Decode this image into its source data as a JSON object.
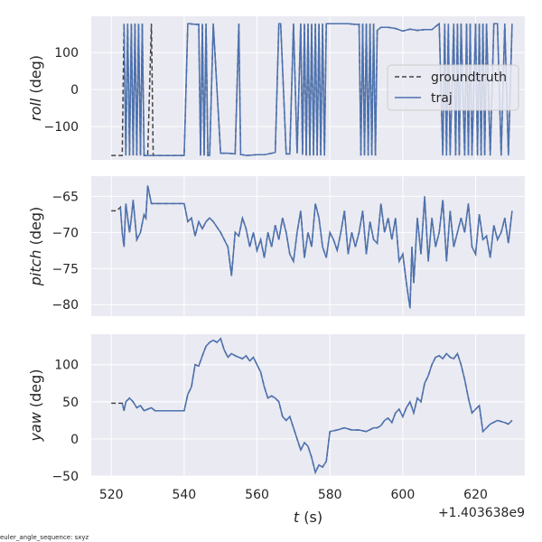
{
  "footer_note": "euler_angle_sequence: sxyz",
  "xaxis": {
    "label_var": "t",
    "label_unit": " (s)",
    "ticks": [
      520,
      540,
      560,
      580,
      600,
      620
    ],
    "offset_text": "+1.403638e9",
    "range": [
      514.5,
      633.5
    ]
  },
  "colors": {
    "background": "#eaeaf2",
    "grid": "#ffffff",
    "groundtruth": "#444444",
    "traj": "#4c72b0",
    "text": "#262626"
  },
  "legend": {
    "placement": "right (inside roll panel)",
    "entries": [
      "groundtruth",
      "traj"
    ]
  },
  "chart_data": [
    {
      "type": "line",
      "ylabel_var": "roll",
      "ylabel_unit": " (deg)",
      "ylim": [
        -190,
        198
      ],
      "yticks": [
        -100,
        0,
        100
      ],
      "grid": true,
      "series": [
        {
          "name": "groundtruth",
          "style": "dashed"
        },
        {
          "name": "traj",
          "style": "solid"
        }
      ],
      "x": [
        520,
        522,
        523,
        523.5,
        524,
        524.5,
        525,
        525.5,
        526,
        526.5,
        527,
        527.5,
        528,
        528.5,
        529,
        530,
        531,
        531.5,
        533,
        536,
        540,
        541,
        541.5,
        543,
        544,
        544.5,
        545,
        545.5,
        546,
        546.5,
        547,
        548,
        550,
        552,
        554,
        555,
        555.5,
        556,
        557,
        560,
        562,
        565,
        566,
        566.5,
        568,
        569,
        570,
        571,
        572,
        572.5,
        573,
        573.5,
        574,
        574.5,
        575,
        575.5,
        576,
        576.5,
        577,
        577.5,
        578,
        578.5,
        579,
        580,
        582,
        585,
        587,
        588,
        588.5,
        589,
        589.5,
        590,
        590.5,
        591,
        591.5,
        592,
        592.5,
        593,
        594,
        596,
        598,
        600,
        602,
        604,
        606,
        608,
        610,
        611,
        611.5,
        612,
        612.5,
        613,
        614,
        614.5,
        615,
        615.5,
        616,
        617,
        617.5,
        618,
        618.5,
        619,
        620,
        620.5,
        621,
        621.5,
        622,
        622.5,
        623,
        624,
        625,
        626,
        627,
        628,
        629,
        630
      ],
      "groundtruth": [
        -178,
        -178,
        -178,
        178,
        -178,
        178,
        -178,
        178,
        -178,
        178,
        -178,
        178,
        -178,
        178,
        -178,
        -178,
        178,
        -178,
        -178,
        -178,
        -178,
        178,
        178,
        176,
        176,
        -178,
        178,
        -178,
        178,
        -178,
        -178,
        178,
        -172,
        -172,
        -174,
        178,
        -176,
        -176,
        -178,
        -176,
        -176,
        -170,
        178,
        178,
        -174,
        -174,
        178,
        -172,
        178,
        -176,
        178,
        -178,
        178,
        -178,
        178,
        -178,
        178,
        -178,
        178,
        -178,
        178,
        -178,
        178,
        178,
        178,
        178,
        176,
        176,
        -178,
        178,
        -178,
        178,
        -178,
        178,
        -178,
        178,
        -178,
        160,
        168,
        168,
        165,
        158,
        163,
        160,
        162,
        162,
        178,
        -178,
        178,
        -178,
        178,
        -178,
        178,
        -178,
        178,
        -178,
        178,
        -178,
        178,
        -178,
        178,
        -178,
        178,
        -178,
        178,
        -178,
        178,
        -178,
        178,
        -178,
        178,
        178,
        -178,
        178,
        -178,
        178,
        -178,
        178
      ],
      "traj": [
        null,
        null,
        null,
        178,
        -178,
        178,
        -178,
        178,
        -178,
        178,
        -178,
        178,
        -178,
        178,
        -178,
        -178,
        -178,
        -178,
        -178,
        -178,
        -178,
        178,
        178,
        176,
        176,
        -178,
        178,
        -178,
        178,
        -178,
        -178,
        178,
        -172,
        -172,
        -174,
        178,
        -176,
        -176,
        -178,
        -176,
        -176,
        -170,
        178,
        178,
        -174,
        -174,
        178,
        -172,
        178,
        -176,
        178,
        -178,
        178,
        -178,
        178,
        -178,
        178,
        -178,
        178,
        -178,
        178,
        -178,
        178,
        178,
        178,
        178,
        176,
        176,
        -178,
        178,
        -178,
        178,
        -178,
        178,
        -178,
        178,
        -178,
        160,
        168,
        168,
        165,
        158,
        163,
        160,
        162,
        162,
        178,
        -178,
        178,
        -178,
        178,
        -178,
        178,
        -178,
        178,
        -178,
        178,
        -178,
        178,
        -178,
        178,
        -178,
        178,
        -178,
        178,
        -178,
        178,
        -178,
        178,
        -178,
        178,
        178,
        -178,
        178,
        -178,
        178,
        -178,
        178
      ]
    },
    {
      "type": "line",
      "ylabel_var": "pitch",
      "ylabel_unit": " (deg)",
      "ylim": [
        -81.6,
        -62.2
      ],
      "yticks": [
        -80,
        -75,
        -70,
        -65
      ],
      "grid": true,
      "series": [
        {
          "name": "groundtruth",
          "style": "dashed"
        },
        {
          "name": "traj",
          "style": "solid"
        }
      ],
      "x": [
        520,
        521.5,
        522.5,
        523,
        523.5,
        524,
        525,
        525.5,
        526,
        527,
        528,
        529,
        529.5,
        530,
        531,
        532,
        533,
        540,
        541,
        542,
        543,
        544,
        545,
        546,
        547,
        548,
        550,
        552,
        553,
        554,
        555,
        556,
        557,
        558,
        559,
        560,
        561,
        562,
        563,
        564,
        565,
        566,
        567,
        568,
        569,
        570,
        571,
        572,
        573,
        574,
        575,
        576,
        577,
        578,
        579,
        580,
        581,
        582,
        583,
        584,
        585,
        586,
        587,
        588,
        589,
        590,
        591,
        592,
        593,
        594,
        595,
        596,
        597,
        598,
        599,
        600,
        601,
        602,
        602.5,
        603,
        604,
        605,
        606,
        607,
        608,
        609,
        610,
        611,
        612,
        613,
        614,
        615,
        616,
        617,
        618,
        619,
        620,
        621,
        622,
        623,
        624,
        625,
        626,
        627,
        628,
        629,
        630
      ],
      "groundtruth": [
        -67.0,
        -67.0,
        -66.5,
        -70.0,
        -72.0,
        -66.0,
        -70.0,
        -68.0,
        -65.5,
        -71.0,
        -70.0,
        -67.5,
        -68.0,
        -63.5,
        -66.0,
        -66.0,
        -66.0,
        -66.0,
        -68.5,
        -68.0,
        -70.5,
        -68.5,
        -69.5,
        -68.5,
        -68.0,
        -68.5,
        -70.0,
        -72.0,
        -76.0,
        -70.0,
        -70.5,
        -68.0,
        -69.5,
        -72.0,
        -70.0,
        -72.5,
        -71.0,
        -73.5,
        -70.0,
        -72.0,
        -69.0,
        -71.0,
        -68.0,
        -70.0,
        -73.0,
        -74.0,
        -70.0,
        -67.0,
        -73.5,
        -70.0,
        -72.0,
        -66.0,
        -68.0,
        -72.0,
        -73.5,
        -70.0,
        -71.0,
        -72.5,
        -70.0,
        -67.0,
        -73.0,
        -70.0,
        -72.0,
        -70.0,
        -67.0,
        -73.0,
        -68.5,
        -71.0,
        -71.5,
        -66.0,
        -70.0,
        -68.0,
        -71.0,
        -68.0,
        -74.0,
        -73.0,
        -77.0,
        -80.5,
        -72.0,
        -77.0,
        -68.0,
        -73.0,
        -65.0,
        -74.0,
        -68.0,
        -72.0,
        -70.0,
        -65.5,
        -74.0,
        -67.0,
        -72.0,
        -70.0,
        -68.0,
        -70.0,
        -66.0,
        -72.0,
        -73.0,
        -67.5,
        -71.0,
        -70.5,
        -73.5,
        -69.0,
        -71.0,
        -70.0,
        -68.0,
        -71.5,
        -67.0
      ],
      "traj": [
        null,
        null,
        -66.5,
        -70.0,
        -72.0,
        -66.0,
        -70.0,
        -68.0,
        -65.5,
        -71.0,
        -70.0,
        -67.5,
        -68.0,
        -63.5,
        -66.0,
        -66.0,
        -66.0,
        -66.0,
        -68.5,
        -68.0,
        -70.5,
        -68.5,
        -69.5,
        -68.5,
        -68.0,
        -68.5,
        -70.0,
        -72.0,
        -76.0,
        -70.0,
        -70.5,
        -68.0,
        -69.5,
        -72.0,
        -70.0,
        -72.5,
        -71.0,
        -73.5,
        -70.0,
        -72.0,
        -69.0,
        -71.0,
        -68.0,
        -70.0,
        -73.0,
        -74.0,
        -70.0,
        -67.0,
        -73.5,
        -70.0,
        -72.0,
        -66.0,
        -68.0,
        -72.0,
        -73.5,
        -70.0,
        -71.0,
        -72.5,
        -70.0,
        -67.0,
        -73.0,
        -70.0,
        -72.0,
        -70.0,
        -67.0,
        -73.0,
        -68.5,
        -71.0,
        -71.5,
        -66.0,
        -70.0,
        -68.0,
        -71.0,
        -68.0,
        -74.0,
        -73.0,
        -77.0,
        -80.5,
        -72.0,
        -77.0,
        -68.0,
        -73.0,
        -65.0,
        -74.0,
        -68.0,
        -72.0,
        -70.0,
        -65.5,
        -74.0,
        -67.0,
        -72.0,
        -70.0,
        -68.0,
        -70.0,
        -66.0,
        -72.0,
        -73.0,
        -67.5,
        -71.0,
        -70.5,
        -73.5,
        -69.0,
        -71.0,
        -70.0,
        -68.0,
        -71.5,
        -67.0
      ]
    },
    {
      "type": "line",
      "ylabel_var": "yaw",
      "ylabel_unit": " (deg)",
      "ylim": [
        -50,
        141
      ],
      "yticks": [
        -50,
        0,
        50,
        100
      ],
      "grid": true,
      "series": [
        {
          "name": "groundtruth",
          "style": "dashed"
        },
        {
          "name": "traj",
          "style": "solid"
        }
      ],
      "x": [
        520,
        522,
        523,
        523.5,
        524,
        525,
        526,
        527,
        528,
        529,
        530,
        531,
        532,
        534,
        536,
        538,
        540,
        541,
        542,
        543,
        544,
        545,
        546,
        547,
        548,
        549,
        550,
        551,
        552,
        553,
        554,
        555,
        556,
        557,
        558,
        559,
        560,
        561,
        562,
        563,
        564,
        565,
        566,
        567,
        568,
        569,
        570,
        571,
        572,
        573,
        574,
        575,
        576,
        577,
        578,
        579,
        580,
        582,
        584,
        586,
        588,
        590,
        592,
        593,
        594,
        595,
        596,
        597,
        598,
        599,
        600,
        601,
        602,
        603,
        604,
        605,
        606,
        607,
        608,
        609,
        610,
        611,
        612,
        613,
        614,
        615,
        616,
        617,
        618,
        619,
        620,
        621,
        622,
        624,
        626,
        628,
        629,
        630
      ],
      "groundtruth": [
        48,
        48,
        48,
        38,
        50,
        55,
        50,
        42,
        45,
        38,
        40,
        42,
        38,
        38,
        38,
        38,
        38,
        60,
        70,
        100,
        98,
        112,
        125,
        130,
        133,
        130,
        135,
        120,
        110,
        115,
        112,
        110,
        108,
        112,
        105,
        110,
        100,
        90,
        70,
        55,
        58,
        55,
        50,
        30,
        25,
        30,
        15,
        0,
        -15,
        -5,
        -10,
        -25,
        -45,
        -35,
        -38,
        -30,
        10,
        12,
        15,
        12,
        12,
        10,
        15,
        15,
        18,
        25,
        28,
        22,
        35,
        40,
        30,
        42,
        50,
        35,
        55,
        50,
        75,
        85,
        100,
        110,
        112,
        108,
        115,
        110,
        108,
        115,
        100,
        80,
        55,
        35,
        40,
        45,
        10,
        20,
        25,
        22,
        20,
        25
      ],
      "traj": [
        null,
        null,
        48,
        38,
        50,
        55,
        50,
        42,
        45,
        38,
        40,
        42,
        38,
        38,
        38,
        38,
        38,
        60,
        70,
        100,
        98,
        112,
        125,
        130,
        133,
        130,
        135,
        120,
        110,
        115,
        112,
        110,
        108,
        112,
        105,
        110,
        100,
        90,
        70,
        55,
        58,
        55,
        50,
        30,
        25,
        30,
        15,
        0,
        -15,
        -5,
        -10,
        -25,
        -45,
        -35,
        -38,
        -30,
        10,
        12,
        15,
        12,
        12,
        10,
        15,
        15,
        18,
        25,
        28,
        22,
        35,
        40,
        30,
        42,
        50,
        35,
        55,
        50,
        75,
        85,
        100,
        110,
        112,
        108,
        115,
        110,
        108,
        115,
        100,
        80,
        55,
        35,
        40,
        45,
        10,
        20,
        25,
        22,
        20,
        25
      ]
    }
  ]
}
